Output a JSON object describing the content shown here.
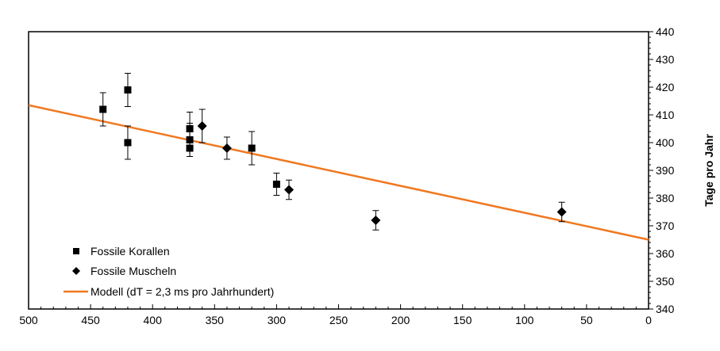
{
  "chart_data": {
    "type": "scatter",
    "title": "",
    "xlabel": "",
    "ylabel": "Tage pro Jahr",
    "xlim": [
      500,
      0
    ],
    "ylim": [
      340,
      440
    ],
    "x_ticks": [
      500,
      450,
      400,
      350,
      300,
      250,
      200,
      150,
      100,
      50,
      0
    ],
    "y_ticks": [
      340,
      350,
      360,
      370,
      380,
      390,
      400,
      410,
      420,
      430,
      440
    ],
    "grid": false,
    "legend_position": "bottom-left",
    "series": [
      {
        "name": "Fossile Korallen",
        "marker": "square",
        "color": "#000000",
        "points": [
          {
            "x": 440,
            "y": 412,
            "err": 6
          },
          {
            "x": 420,
            "y": 419,
            "err": 6
          },
          {
            "x": 420,
            "y": 400,
            "err": 6
          },
          {
            "x": 370,
            "y": 405,
            "err": 6
          },
          {
            "x": 370,
            "y": 401,
            "err": 6
          },
          {
            "x": 370,
            "y": 398,
            "err": 3
          },
          {
            "x": 320,
            "y": 398,
            "err": 6
          },
          {
            "x": 300,
            "y": 385,
            "err": 4
          }
        ]
      },
      {
        "name": "Fossile Muscheln",
        "marker": "diamond",
        "color": "#000000",
        "points": [
          {
            "x": 360,
            "y": 406,
            "err": 6
          },
          {
            "x": 340,
            "y": 398,
            "err": 4
          },
          {
            "x": 290,
            "y": 383,
            "err": 3.5
          },
          {
            "x": 220,
            "y": 372,
            "err": 3.5
          },
          {
            "x": 70,
            "y": 375,
            "err": 3.5
          }
        ]
      },
      {
        "name": "Modell (dT = 2,3 ms pro Jahrhundert)",
        "type": "line",
        "color": "#F07820",
        "points": [
          {
            "x": 500,
            "y": 413.5
          },
          {
            "x": 0,
            "y": 365
          }
        ]
      }
    ]
  }
}
